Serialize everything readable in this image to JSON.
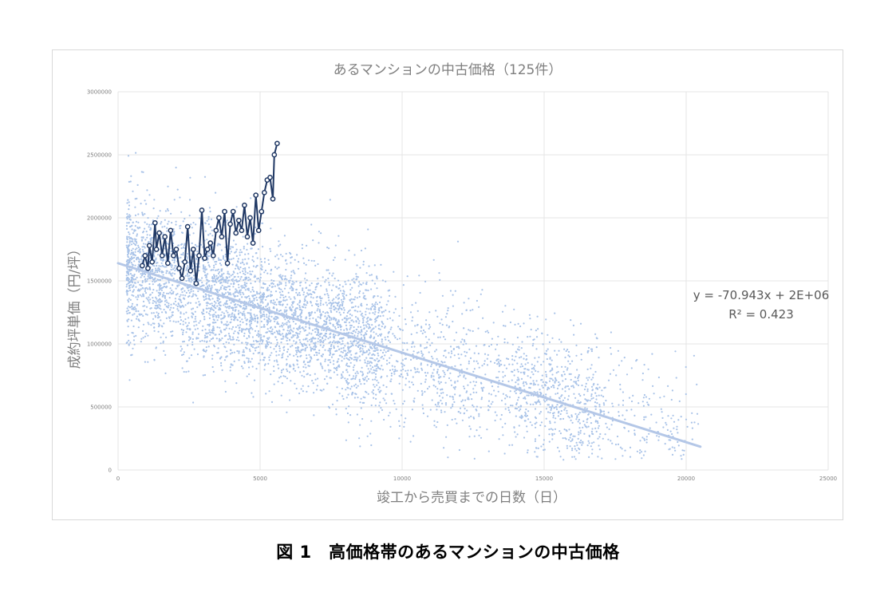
{
  "chart_data": {
    "type": "scatter",
    "title": "あるマンションの中古価格（125件）",
    "xlabel": "竣工から売買までの日数（日）",
    "ylabel": "成約坪単価（円/坪）",
    "xlim": [
      0,
      25000
    ],
    "ylim": [
      0,
      3000000
    ],
    "x_ticks": [
      "0",
      "5000",
      "10000",
      "15000",
      "20000",
      "25000"
    ],
    "y_ticks": [
      "0",
      "500000",
      "1000000",
      "1500000",
      "2000000",
      "2500000",
      "3000000"
    ],
    "grid": true,
    "colors": {
      "scatter": "#a9c3e8",
      "trend": "#b4c7e7",
      "highlight": "#203864",
      "highlight_fill": "#ffffff"
    },
    "series": [
      {
        "kind": "trendline",
        "equation": "y = -70.943x + 2E+06",
        "r_squared": "R² = 0.423",
        "points": [
          {
            "x": 0,
            "y": 1640000
          },
          {
            "x": 20500,
            "y": 185000
          }
        ]
      },
      {
        "kind": "highlighted-line",
        "points": [
          {
            "x": 850,
            "y": 1620000
          },
          {
            "x": 950,
            "y": 1700000
          },
          {
            "x": 1050,
            "y": 1600000
          },
          {
            "x": 1100,
            "y": 1780000
          },
          {
            "x": 1200,
            "y": 1650000
          },
          {
            "x": 1300,
            "y": 1960000
          },
          {
            "x": 1350,
            "y": 1750000
          },
          {
            "x": 1450,
            "y": 1880000
          },
          {
            "x": 1550,
            "y": 1700000
          },
          {
            "x": 1650,
            "y": 1850000
          },
          {
            "x": 1750,
            "y": 1640000
          },
          {
            "x": 1850,
            "y": 1900000
          },
          {
            "x": 1950,
            "y": 1700000
          },
          {
            "x": 2050,
            "y": 1750000
          },
          {
            "x": 2150,
            "y": 1600000
          },
          {
            "x": 2250,
            "y": 1520000
          },
          {
            "x": 2350,
            "y": 1650000
          },
          {
            "x": 2450,
            "y": 1930000
          },
          {
            "x": 2550,
            "y": 1580000
          },
          {
            "x": 2650,
            "y": 1750000
          },
          {
            "x": 2750,
            "y": 1480000
          },
          {
            "x": 2850,
            "y": 1700000
          },
          {
            "x": 2950,
            "y": 2060000
          },
          {
            "x": 3050,
            "y": 1680000
          },
          {
            "x": 3150,
            "y": 1750000
          },
          {
            "x": 3250,
            "y": 1800000
          },
          {
            "x": 3350,
            "y": 1700000
          },
          {
            "x": 3450,
            "y": 1900000
          },
          {
            "x": 3550,
            "y": 2000000
          },
          {
            "x": 3650,
            "y": 1850000
          },
          {
            "x": 3750,
            "y": 2050000
          },
          {
            "x": 3850,
            "y": 1640000
          },
          {
            "x": 3950,
            "y": 1950000
          },
          {
            "x": 4050,
            "y": 2050000
          },
          {
            "x": 4150,
            "y": 1880000
          },
          {
            "x": 4250,
            "y": 1980000
          },
          {
            "x": 4350,
            "y": 1900000
          },
          {
            "x": 4450,
            "y": 2100000
          },
          {
            "x": 4550,
            "y": 1850000
          },
          {
            "x": 4650,
            "y": 2000000
          },
          {
            "x": 4750,
            "y": 1800000
          },
          {
            "x": 4850,
            "y": 2180000
          },
          {
            "x": 4950,
            "y": 1900000
          },
          {
            "x": 5050,
            "y": 2050000
          },
          {
            "x": 5150,
            "y": 2200000
          },
          {
            "x": 5250,
            "y": 2300000
          },
          {
            "x": 5350,
            "y": 2320000
          },
          {
            "x": 5450,
            "y": 2150000
          },
          {
            "x": 5500,
            "y": 2500000
          },
          {
            "x": 5600,
            "y": 2590000
          }
        ]
      }
    ]
  },
  "caption": "図 1　高価格帯のあるマンションの中古価格"
}
